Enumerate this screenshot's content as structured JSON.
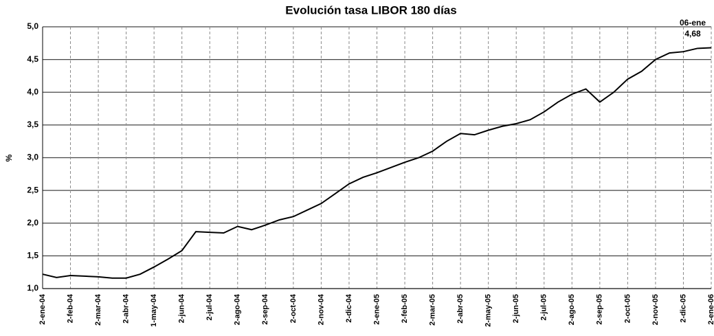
{
  "chart_data": {
    "type": "line",
    "title": "Evolución tasa LIBOR 180 días",
    "y_label": "%",
    "annotations": [
      "06-ene",
      "4,68"
    ],
    "categories": [
      "2-ene-04",
      null,
      "2-feb-04",
      null,
      "2-mar-04",
      null,
      "2-abr-04",
      null,
      "1-may-04",
      null,
      "2-jun-04",
      null,
      "2-jul-04",
      null,
      "2-ago-04",
      null,
      "2-sep-04",
      null,
      "2-oct-04",
      null,
      "2-nov-04",
      null,
      "2-dic-04",
      null,
      "2-ene-05",
      null,
      "2-feb-05",
      null,
      "2-mar-05",
      null,
      "2-abr-05",
      null,
      "2-may-05",
      null,
      "2-jun-05",
      null,
      "2-jul-05",
      null,
      "2-ago-05",
      null,
      "2-sep-05",
      null,
      "2-oct-05",
      null,
      "2-nov-05",
      null,
      "2-dic-05",
      null,
      "2-ene-06"
    ],
    "series": [
      {
        "name": "LIBOR 180 días",
        "color": "#000000",
        "values": [
          1.22,
          1.17,
          1.2,
          1.19,
          1.18,
          1.16,
          1.16,
          1.22,
          1.33,
          1.45,
          1.58,
          1.87,
          1.86,
          1.85,
          1.95,
          1.9,
          1.97,
          2.05,
          2.1,
          2.2,
          2.3,
          2.45,
          2.6,
          2.7,
          2.77,
          2.85,
          2.93,
          3.0,
          3.1,
          3.25,
          3.37,
          3.35,
          3.42,
          3.48,
          3.52,
          3.58,
          3.7,
          3.85,
          3.97,
          4.05,
          3.85,
          4.0,
          4.2,
          4.32,
          4.5,
          4.6,
          4.62,
          4.67,
          4.68
        ]
      }
    ],
    "ylim": [
      1.0,
      5.0
    ],
    "yticks": [
      {
        "value": 1.0,
        "label": "1,0"
      },
      {
        "value": 1.5,
        "label": "1,5"
      },
      {
        "value": 2.0,
        "label": "2,0"
      },
      {
        "value": 2.5,
        "label": "2,5"
      },
      {
        "value": 3.0,
        "label": "3,0"
      },
      {
        "value": 3.5,
        "label": "3,5"
      },
      {
        "value": 4.0,
        "label": "4,0"
      },
      {
        "value": 4.5,
        "label": "4,5"
      },
      {
        "value": 5.0,
        "label": "5,0"
      }
    ],
    "grid": true
  }
}
